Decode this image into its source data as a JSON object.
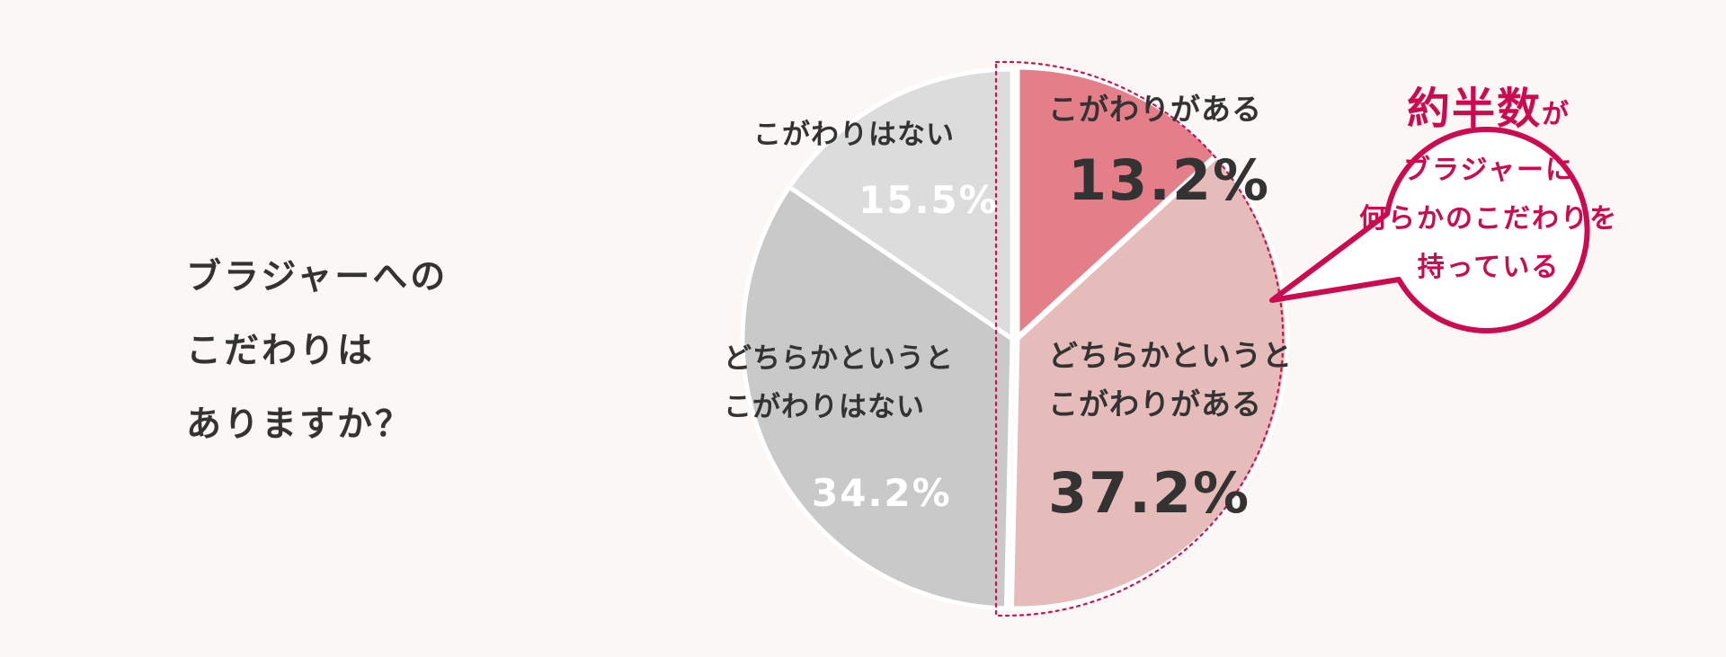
{
  "question": {
    "lines": [
      "ブラジャーへの",
      "こだわりは",
      "ありますか？"
    ]
  },
  "chart_data": {
    "type": "pie",
    "start": "top (12 o'clock)",
    "direction": "clockwise",
    "slices": [
      {
        "label": "こがわりがある",
        "label_lines": [
          "こがわりがある"
        ],
        "value": 13.2,
        "value_text": "13.2%",
        "color": "#e47e88",
        "text_color": "#333333"
      },
      {
        "label": "どちらかというとこがわりがある",
        "label_lines": [
          "どちらかというと",
          "こがわりがある"
        ],
        "value": 37.2,
        "value_text": "37.2%",
        "color": "#e5bcb9",
        "text_color": "#333333"
      },
      {
        "label": "どちらかというとこがわりはない",
        "label_lines": [
          "どちらかというと",
          "こがわりはない"
        ],
        "value": 34.2,
        "value_text": "34.2%",
        "color": "#c9c9c9",
        "text_color": "#ffffff"
      },
      {
        "label": "こがわりはない",
        "label_lines": [
          "こがわりはない"
        ],
        "value": 15.5,
        "value_text": "15.5%",
        "color": "#dcdcdc",
        "text_color": "#ffffff"
      }
    ],
    "highlight": {
      "slices": [
        0,
        1
      ],
      "border_color": "#c8154f",
      "style": "dotted"
    }
  },
  "callout": {
    "head_big": "約半数",
    "head_small": "が",
    "lines": [
      "ブラジャーに",
      "何らかのこだわりを",
      "持っている"
    ],
    "color": "#cc0a4f"
  }
}
